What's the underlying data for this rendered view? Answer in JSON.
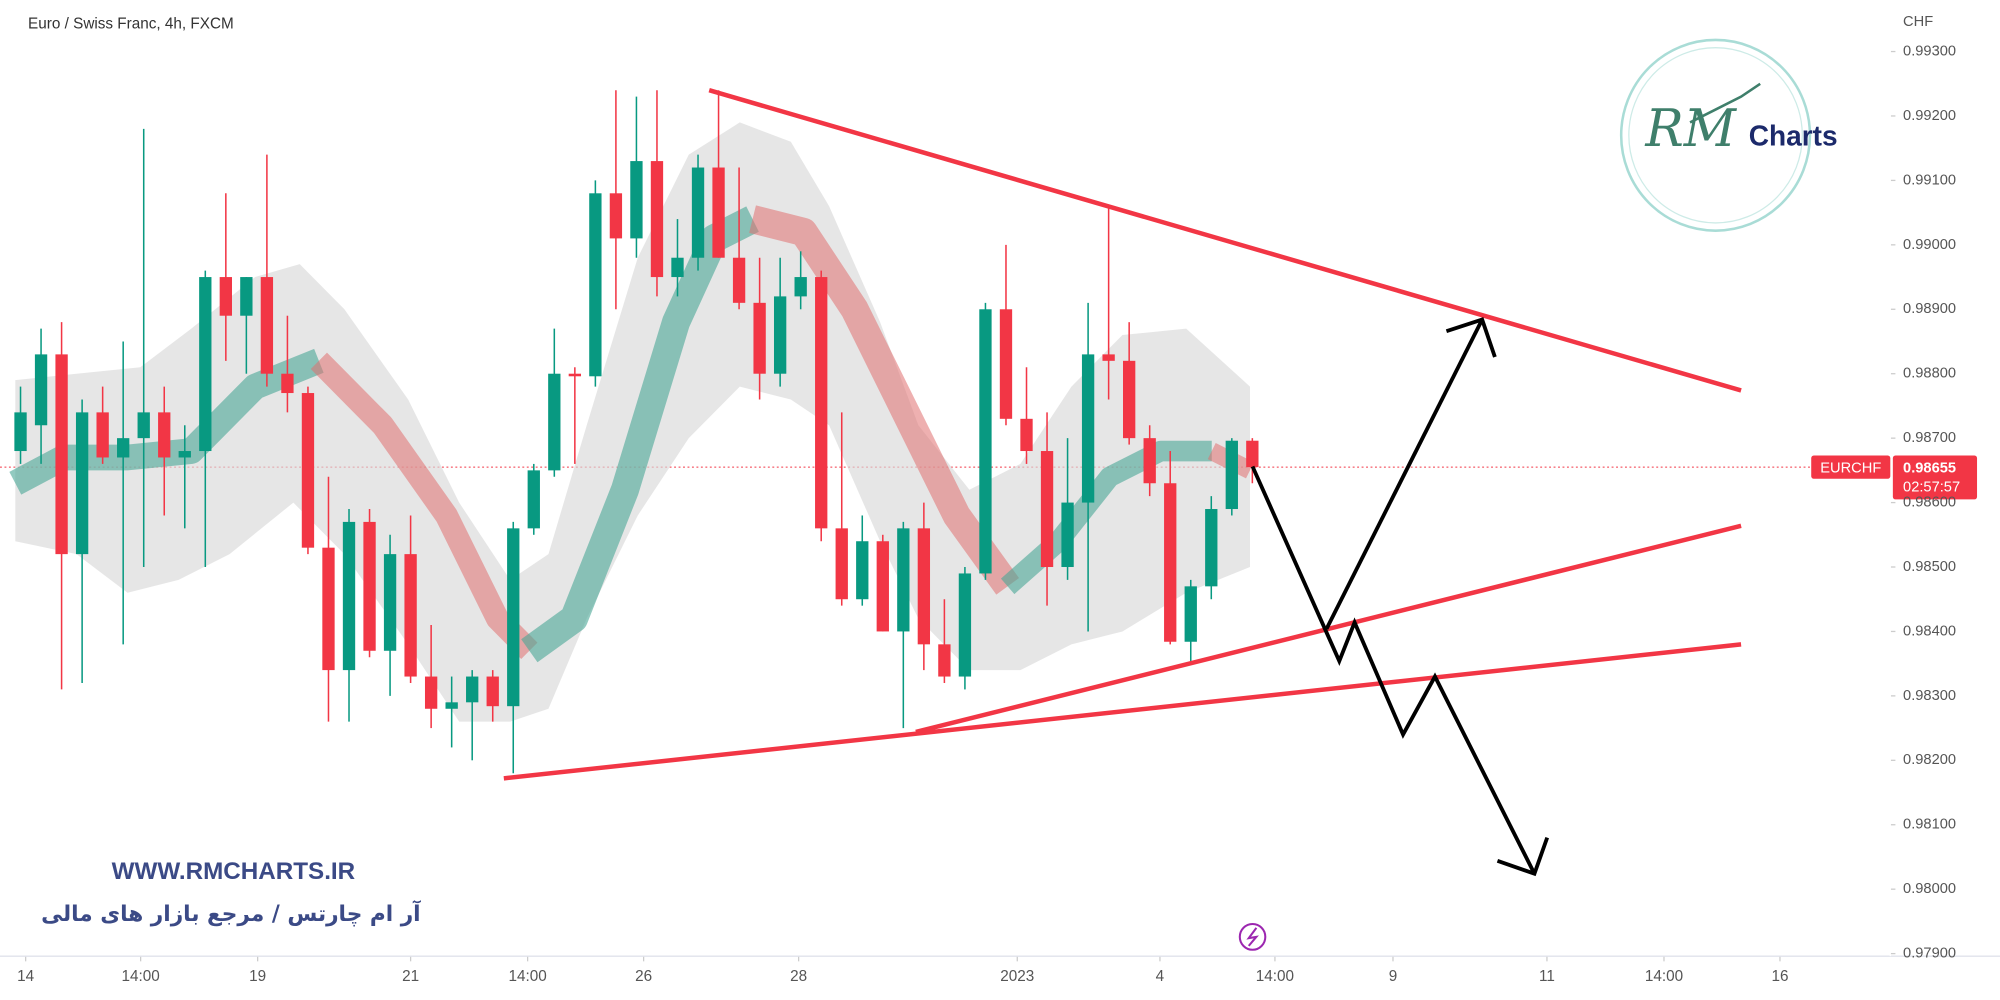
{
  "chart_data": {
    "type": "candlestick",
    "title": "Euro / Swiss Franc, 4h, FXCM",
    "y_axis_unit": "CHF",
    "symbol": "EURCHF",
    "last_price": 0.98655,
    "countdown": "02:57:57",
    "up_color": "#089981",
    "down_color": "#f23645",
    "x": [
      0,
      2,
      4,
      6,
      8,
      10,
      12,
      14,
      16,
      18,
      20,
      22,
      24,
      26,
      28,
      30,
      32,
      34,
      36,
      38,
      40,
      42,
      44,
      46,
      48,
      50,
      52,
      54,
      56,
      58,
      60,
      62,
      64,
      66,
      68,
      70,
      72,
      74,
      76,
      78,
      80,
      82,
      84,
      86,
      88,
      90,
      92,
      94,
      96,
      98,
      100,
      102,
      104,
      106,
      108,
      110,
      112,
      114,
      116,
      118,
      120
    ],
    "open": [
      0.9868,
      0.9872,
      0.9883,
      0.9852,
      0.9874,
      0.9867,
      0.987,
      0.9874,
      0.9867,
      0.9868,
      0.9895,
      0.9889,
      0.9895,
      0.988,
      0.9877,
      0.9853,
      0.9834,
      0.9857,
      0.9837,
      0.9852,
      0.9833,
      0.9828,
      0.9829,
      0.9833,
      0.98284,
      0.9856,
      0.9865,
      0.988,
      0.98796,
      0.9908,
      0.9901,
      0.9913,
      0.9895,
      0.9898,
      0.9912,
      0.9898,
      0.9891,
      0.988,
      0.9892,
      0.9895,
      0.9856,
      0.9845,
      0.9854,
      0.984,
      0.9856,
      0.9838,
      0.9833,
      0.9849,
      0.989,
      0.9873,
      0.9868,
      0.985,
      0.986,
      0.9883,
      0.9882,
      0.987,
      0.9863,
      0.98384,
      0.9847,
      0.9859,
      0.98696
    ],
    "high": [
      0.9878,
      0.9887,
      0.9888,
      0.9876,
      0.9878,
      0.9885,
      0.9918,
      0.9878,
      0.9872,
      0.9896,
      0.9908,
      0.9895,
      0.9914,
      0.9889,
      0.9878,
      0.9864,
      0.9859,
      0.9859,
      0.9855,
      0.9858,
      0.9841,
      0.9833,
      0.9834,
      0.9834,
      0.9857,
      0.9866,
      0.9887,
      0.9881,
      0.991,
      0.9924,
      0.9923,
      0.9924,
      0.9904,
      0.9914,
      0.9924,
      0.9912,
      0.9898,
      0.9898,
      0.9899,
      0.9896,
      0.9874,
      0.9858,
      0.9855,
      0.9857,
      0.986,
      0.9845,
      0.985,
      0.9891,
      0.99,
      0.9881,
      0.9874,
      0.987,
      0.9891,
      0.9906,
      0.9888,
      0.9872,
      0.9868,
      0.9848,
      0.9861,
      0.987,
      0.987
    ],
    "low": [
      0.9866,
      0.9866,
      0.9831,
      0.9832,
      0.9866,
      0.9838,
      0.985,
      0.9858,
      0.9856,
      0.985,
      0.9882,
      0.988,
      0.9878,
      0.9874,
      0.9852,
      0.9826,
      0.9826,
      0.9836,
      0.983,
      0.9832,
      0.9825,
      0.9822,
      0.982,
      0.9826,
      0.9818,
      0.9855,
      0.9864,
      0.9866,
      0.9878,
      0.989,
      0.9898,
      0.9892,
      0.9892,
      0.9896,
      0.9898,
      0.989,
      0.9876,
      0.9878,
      0.989,
      0.9854,
      0.9844,
      0.9844,
      0.984,
      0.9825,
      0.9834,
      0.9832,
      0.9831,
      0.9848,
      0.9872,
      0.9866,
      0.9844,
      0.9848,
      0.984,
      0.9876,
      0.9869,
      0.9861,
      0.9838,
      0.9835,
      0.9845,
      0.9858,
      0.9863
    ],
    "close": [
      0.9874,
      0.9883,
      0.9852,
      0.9874,
      0.9867,
      0.987,
      0.9874,
      0.9867,
      0.9868,
      0.9895,
      0.9889,
      0.9895,
      0.988,
      0.9877,
      0.9853,
      0.9834,
      0.9857,
      0.9837,
      0.9852,
      0.9833,
      0.9828,
      0.9829,
      0.9833,
      0.98284,
      0.9856,
      0.9865,
      0.988,
      0.98796,
      0.9908,
      0.9901,
      0.9913,
      0.9895,
      0.9898,
      0.9912,
      0.9898,
      0.9891,
      0.988,
      0.9892,
      0.9895,
      0.9856,
      0.9845,
      0.9854,
      0.984,
      0.9856,
      0.9838,
      0.9833,
      0.9849,
      0.989,
      0.9873,
      0.9868,
      0.985,
      0.986,
      0.9883,
      0.9882,
      0.987,
      0.9863,
      0.98384,
      0.9847,
      0.9859,
      0.98696,
      0.98655
    ],
    "xlim": [
      -2,
      181.9
    ],
    "xticks": [
      {
        "value": 0.5,
        "label": "14"
      },
      {
        "value": 11.7,
        "label": "14:00"
      },
      {
        "value": 23.1,
        "label": "19"
      },
      {
        "value": 38,
        "label": "21"
      },
      {
        "value": 49.4,
        "label": "14:00"
      },
      {
        "value": 60.7,
        "label": "26"
      },
      {
        "value": 75.8,
        "label": "28"
      },
      {
        "value": 97.1,
        "label": "2023"
      },
      {
        "value": 111,
        "label": "4"
      },
      {
        "value": 122.2,
        "label": "14:00"
      },
      {
        "value": 133.7,
        "label": "9"
      },
      {
        "value": 148.7,
        "label": "11"
      },
      {
        "value": 160.1,
        "label": "14:00"
      },
      {
        "value": 171.4,
        "label": "16"
      }
    ],
    "ylim": [
      0.97896,
      0.9938
    ],
    "yticks": [
      {
        "value": 0.993,
        "label": "0.99300"
      },
      {
        "value": 0.992,
        "label": "0.99200"
      },
      {
        "value": 0.991,
        "label": "0.99100"
      },
      {
        "value": 0.99,
        "label": "0.99000"
      },
      {
        "value": 0.989,
        "label": "0.98900"
      },
      {
        "value": 0.988,
        "label": "0.98800"
      },
      {
        "value": 0.987,
        "label": "0.98700"
      },
      {
        "value": 0.986,
        "label": "0.98600"
      },
      {
        "value": 0.985,
        "label": "0.98500"
      },
      {
        "value": 0.984,
        "label": "0.98400"
      },
      {
        "value": 0.983,
        "label": "0.98300"
      },
      {
        "value": 0.982,
        "label": "0.98200"
      },
      {
        "value": 0.981,
        "label": "0.98100"
      },
      {
        "value": 0.98,
        "label": "0.98000"
      },
      {
        "value": 0.979,
        "label": "0.97900"
      }
    ]
  },
  "watermark": {
    "url": "WWW.RMCHARTS.IR",
    "tagline": "آر ام چارتس / مرجع بازار های مالی"
  },
  "logo": {
    "initials": "RM",
    "text": "Charts"
  }
}
